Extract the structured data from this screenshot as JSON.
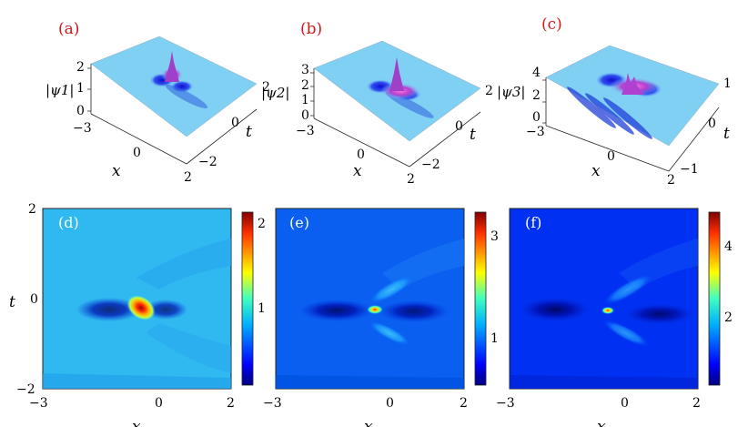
{
  "figure": {
    "panels_3d": [
      {
        "tag": "(a)",
        "zlabel": "|ψ1|",
        "zticks": [
          "2",
          "1",
          "0"
        ],
        "xlabel": "x",
        "xticks": [
          "−3",
          "0",
          "2"
        ],
        "tlabel": "t",
        "tticks": [
          "2",
          "0",
          "−2"
        ]
      },
      {
        "tag": "(b)",
        "zlabel": "|ψ2|",
        "zticks": [
          "3",
          "2",
          "1",
          "0"
        ],
        "xlabel": "x",
        "xticks": [
          "−3",
          "0",
          "2"
        ],
        "tlabel": "t",
        "tticks": [
          "2",
          "0",
          "−2"
        ]
      },
      {
        "tag": "(c)",
        "zlabel": "|ψ3|",
        "zticks": [
          "4",
          "2",
          "0"
        ],
        "xlabel": "x",
        "xticks": [
          "−3",
          "0",
          "2"
        ],
        "tlabel": "t",
        "tticks": [
          "1",
          "0",
          "−1"
        ]
      }
    ],
    "panels_2d": [
      {
        "tag": "(d)",
        "xticks": [
          "−3",
          "0",
          "2"
        ],
        "yticks": [
          "2",
          "0",
          "−2"
        ],
        "xlabel": "x",
        "ylabel": "t",
        "cbar_ticks": [
          "2",
          "1"
        ]
      },
      {
        "tag": "(e)",
        "xticks": [
          "−3",
          "0",
          "2"
        ],
        "yticks": [],
        "xlabel": "x",
        "ylabel": "",
        "cbar_ticks": [
          "3",
          "1"
        ]
      },
      {
        "tag": "(f)",
        "xticks": [
          "−3",
          "0",
          "2"
        ],
        "yticks": [],
        "xlabel": "x",
        "ylabel": "",
        "cbar_ticks": [
          "4",
          "2"
        ]
      }
    ]
  },
  "chart_data": [
    {
      "type": "surface",
      "title": "(a)",
      "zlabel": "|ψ1|",
      "xlabel": "x",
      "ylabel": "t",
      "xlim": [
        -3,
        2
      ],
      "ylim": [
        -2,
        2
      ],
      "zlim": [
        0,
        2
      ],
      "peak": {
        "x": -0.3,
        "t": -0.2,
        "z": 2.1
      },
      "background_level": 1
    },
    {
      "type": "surface",
      "title": "(b)",
      "zlabel": "|ψ2|",
      "xlabel": "x",
      "ylabel": "t",
      "xlim": [
        -3,
        2
      ],
      "ylim": [
        -2,
        2
      ],
      "zlim": [
        0,
        3
      ],
      "peak": {
        "x": -0.3,
        "t": -0.2,
        "z": 3.3
      },
      "background_level": 1
    },
    {
      "type": "surface",
      "title": "(c)",
      "zlabel": "|ψ3|",
      "xlabel": "x",
      "ylabel": "t",
      "xlim": [
        -3,
        2
      ],
      "ylim": [
        -1,
        1
      ],
      "zlim": [
        0,
        4
      ],
      "peak": {
        "x": -0.3,
        "t": -0.2,
        "z": 4.8
      },
      "background_level": 1
    },
    {
      "type": "heatmap",
      "title": "(d)",
      "xlabel": "x",
      "ylabel": "t",
      "xlim": [
        -3,
        2
      ],
      "ylim": [
        -2,
        2
      ],
      "colorbar": {
        "min": 0,
        "max": 2.1,
        "ticks": [
          1,
          2
        ]
      },
      "peak": {
        "x": -0.3,
        "t": -0.2,
        "value": 2.1
      }
    },
    {
      "type": "heatmap",
      "title": "(e)",
      "xlabel": "x",
      "ylabel": "t",
      "xlim": [
        -3,
        2
      ],
      "ylim": [
        -2,
        2
      ],
      "colorbar": {
        "min": 0,
        "max": 3.4,
        "ticks": [
          1,
          3
        ]
      },
      "peak": {
        "x": -0.3,
        "t": -0.2,
        "value": 3.4
      }
    },
    {
      "type": "heatmap",
      "title": "(f)",
      "xlabel": "x",
      "ylabel": "t",
      "xlim": [
        -3,
        2
      ],
      "ylim": [
        -2,
        2
      ],
      "colorbar": {
        "min": 0,
        "max": 5,
        "ticks": [
          2,
          4
        ]
      },
      "peak": {
        "x": -0.3,
        "t": -0.2,
        "value": 5
      }
    }
  ]
}
